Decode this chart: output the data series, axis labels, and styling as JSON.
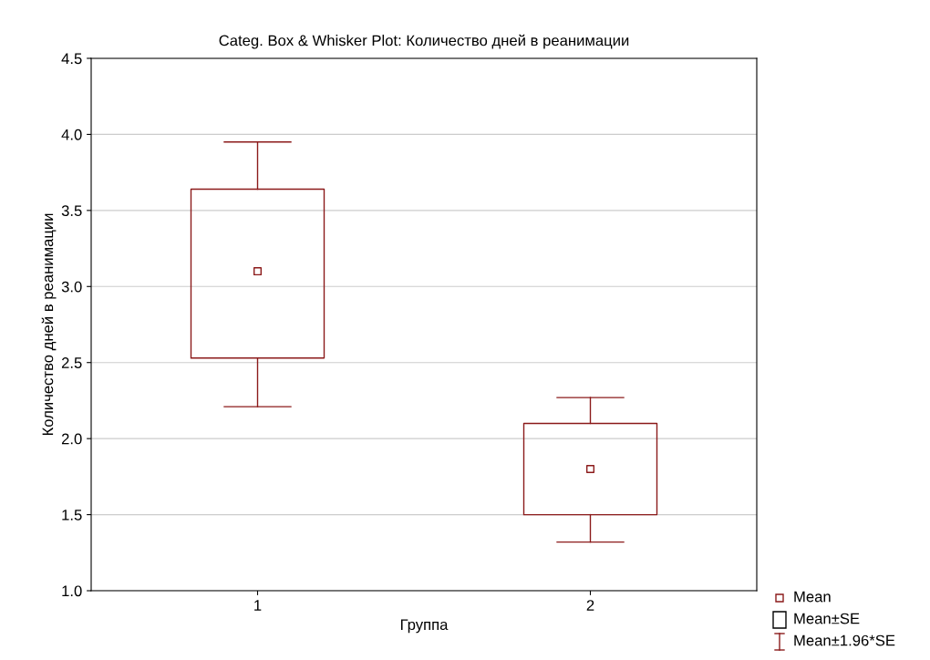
{
  "chart_data": {
    "type": "box",
    "title": "Categ. Box & Whisker Plot: Количество дней в реанимации",
    "xlabel": "Группа",
    "ylabel": "Количество дней в реанимации",
    "categories": [
      "1",
      "2"
    ],
    "boxes": [
      {
        "low": 2.21,
        "q1": 2.53,
        "median": 3.1,
        "q3": 3.64,
        "high": 3.95
      },
      {
        "low": 1.32,
        "q1": 1.5,
        "median": 1.8,
        "q3": 2.1,
        "high": 2.27
      }
    ],
    "color": "#8b1a1a",
    "ylim": [
      1.0,
      4.5
    ],
    "yticks": [
      {
        "value": 1.0,
        "label": "1.0"
      },
      {
        "value": 1.5,
        "label": "1.5"
      },
      {
        "value": 2.0,
        "label": "2.0"
      },
      {
        "value": 2.5,
        "label": "2.5"
      },
      {
        "value": 3.0,
        "label": "3.0"
      },
      {
        "value": 3.5,
        "label": "3.5"
      },
      {
        "value": 4.0,
        "label": "4.0"
      },
      {
        "value": 4.5,
        "label": "4.5"
      }
    ],
    "grid": "y",
    "annotations": [
      "Mean",
      "Mean±SE",
      "Mean±1.96*SE"
    ]
  }
}
